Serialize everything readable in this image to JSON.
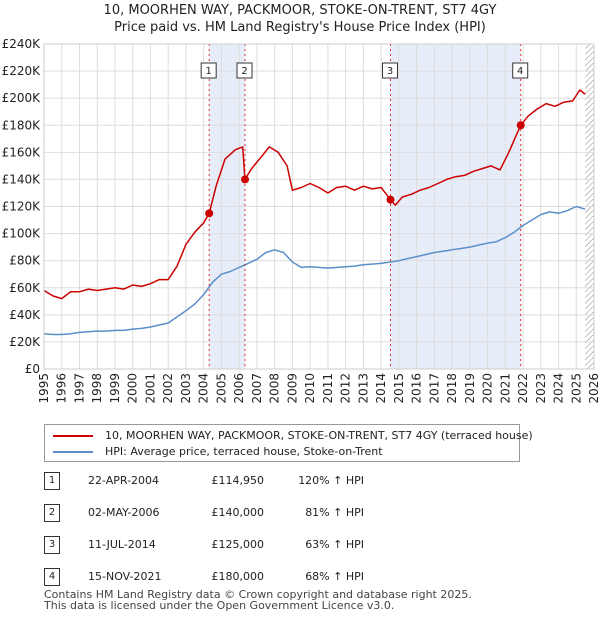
{
  "title_line1": "10, MOORHEN WAY, PACKMOOR, STOKE-ON-TRENT, ST7 4GY",
  "title_line2": "Price paid vs. HM Land Registry's House Price Index (HPI)",
  "colors": {
    "property": "#cc0000",
    "hpi": "#5b8fcb",
    "shade": "#dde6f5",
    "vline": "#cc0000",
    "grid": "#dddddd"
  },
  "chart_data": {
    "type": "line",
    "title": "Price paid vs. HM Land Registry's House Price Index (HPI)",
    "xlabel": "",
    "ylabel": "",
    "xlim": [
      1995,
      2026
    ],
    "ylim": [
      0,
      240000
    ],
    "x_ticks": [
      1995,
      1996,
      1997,
      1998,
      1999,
      2000,
      2001,
      2002,
      2003,
      2004,
      2005,
      2006,
      2007,
      2008,
      2009,
      2010,
      2011,
      2012,
      2013,
      2014,
      2015,
      2016,
      2017,
      2018,
      2019,
      2020,
      2021,
      2022,
      2023,
      2024,
      2025,
      2026
    ],
    "y_ticks": [
      0,
      20000,
      40000,
      60000,
      80000,
      100000,
      120000,
      140000,
      160000,
      180000,
      200000,
      220000,
      240000
    ],
    "y_tick_labels": [
      "£0",
      "£20K",
      "£40K",
      "£60K",
      "£80K",
      "£100K",
      "£120K",
      "£140K",
      "£160K",
      "£180K",
      "£200K",
      "£220K",
      "£240K"
    ],
    "grid": true,
    "shaded_periods": [
      [
        2004.31,
        2006.33
      ],
      [
        2014.53,
        2021.87
      ]
    ],
    "hatched_after": 2025.5,
    "series": [
      {
        "name": "10, MOORHEN WAY, PACKMOOR, STOKE-ON-TRENT, ST7 4GY (terraced house)",
        "color": "#cc0000",
        "x": [
          1995.0,
          1995.5,
          1996.0,
          1996.5,
          1997.0,
          1997.5,
          1998.0,
          1998.5,
          1999.0,
          1999.5,
          2000.0,
          2000.5,
          2001.0,
          2001.5,
          2002.0,
          2002.5,
          2003.0,
          2003.5,
          2004.0,
          2004.31,
          2004.7,
          2005.2,
          2005.8,
          2006.2,
          2006.33,
          2006.7,
          2007.2,
          2007.7,
          2008.2,
          2008.7,
          2009.0,
          2009.5,
          2010.0,
          2010.5,
          2011.0,
          2011.5,
          2012.0,
          2012.5,
          2013.0,
          2013.5,
          2014.0,
          2014.3,
          2014.53,
          2014.8,
          2015.2,
          2015.7,
          2016.2,
          2016.7,
          2017.2,
          2017.7,
          2018.2,
          2018.7,
          2019.2,
          2019.7,
          2020.2,
          2020.7,
          2021.2,
          2021.6,
          2021.87,
          2022.3,
          2022.8,
          2023.3,
          2023.8,
          2024.3,
          2024.8,
          2025.2,
          2025.5
        ],
        "y": [
          58000,
          54000,
          52000,
          57000,
          57000,
          59000,
          58000,
          59000,
          60000,
          59000,
          62000,
          61000,
          63000,
          66000,
          66000,
          76000,
          92000,
          101000,
          108000,
          114950,
          135000,
          155000,
          162000,
          164000,
          140000,
          148000,
          156000,
          164000,
          160000,
          150000,
          132000,
          134000,
          137000,
          134000,
          130000,
          134000,
          135000,
          132000,
          135000,
          133000,
          134000,
          129000,
          125000,
          121000,
          127000,
          129000,
          132000,
          134000,
          137000,
          140000,
          142000,
          143000,
          146000,
          148000,
          150000,
          147000,
          160000,
          172000,
          180000,
          187000,
          192000,
          196000,
          194000,
          197000,
          198000,
          206000,
          203000
        ]
      },
      {
        "name": "HPI: Average price, terraced house, Stoke-on-Trent",
        "color": "#5b8fcb",
        "x": [
          1995.0,
          1995.5,
          1996.0,
          1996.5,
          1997.0,
          1997.5,
          1998.0,
          1998.5,
          1999.0,
          1999.5,
          2000.0,
          2000.5,
          2001.0,
          2001.5,
          2002.0,
          2002.5,
          2003.0,
          2003.5,
          2004.0,
          2004.5,
          2005.0,
          2005.5,
          2006.0,
          2006.5,
          2007.0,
          2007.5,
          2008.0,
          2008.5,
          2009.0,
          2009.5,
          2010.0,
          2010.5,
          2011.0,
          2011.5,
          2012.0,
          2012.5,
          2013.0,
          2013.5,
          2014.0,
          2014.5,
          2015.0,
          2015.5,
          2016.0,
          2016.5,
          2017.0,
          2017.5,
          2018.0,
          2018.5,
          2019.0,
          2019.5,
          2020.0,
          2020.5,
          2021.0,
          2021.5,
          2022.0,
          2022.5,
          2023.0,
          2023.5,
          2024.0,
          2024.5,
          2025.0,
          2025.5
        ],
        "y": [
          26000,
          25500,
          25500,
          26000,
          27000,
          27500,
          28000,
          28000,
          28500,
          28500,
          29500,
          30000,
          31000,
          32500,
          34000,
          38500,
          43000,
          48000,
          55000,
          64000,
          70000,
          72000,
          75000,
          78000,
          81000,
          86000,
          88000,
          86000,
          79000,
          75000,
          75500,
          75000,
          74500,
          75000,
          75500,
          76000,
          77000,
          77500,
          78000,
          79000,
          80000,
          81500,
          83000,
          84500,
          86000,
          87000,
          88000,
          89000,
          90000,
          91500,
          93000,
          94000,
          97000,
          101000,
          106000,
          110000,
          114000,
          116000,
          115000,
          117000,
          120000,
          118000
        ]
      }
    ],
    "sales": [
      {
        "num": "1",
        "x": 2004.31,
        "price": 114950,
        "date": "22-APR-2004",
        "price_label": "£114,950",
        "hpi": "120% ↑ HPI"
      },
      {
        "num": "2",
        "x": 2006.33,
        "price": 140000,
        "date": "02-MAY-2006",
        "price_label": "£140,000",
        "hpi": "81% ↑ HPI"
      },
      {
        "num": "3",
        "x": 2014.53,
        "price": 125000,
        "date": "11-JUL-2014",
        "price_label": "£125,000",
        "hpi": "63% ↑ HPI"
      },
      {
        "num": "4",
        "x": 2021.87,
        "price": 180000,
        "date": "15-NOV-2021",
        "price_label": "£180,000",
        "hpi": "68% ↑ HPI"
      }
    ]
  },
  "legend": {
    "property": "10, MOORHEN WAY, PACKMOOR, STOKE-ON-TRENT, ST7 4GY (terraced house)",
    "hpi": "HPI: Average price, terraced house, Stoke-on-Trent"
  },
  "footer": {
    "line1": "Contains HM Land Registry data © Crown copyright and database right 2025.",
    "line2": "This data is licensed under the Open Government Licence v3.0."
  }
}
